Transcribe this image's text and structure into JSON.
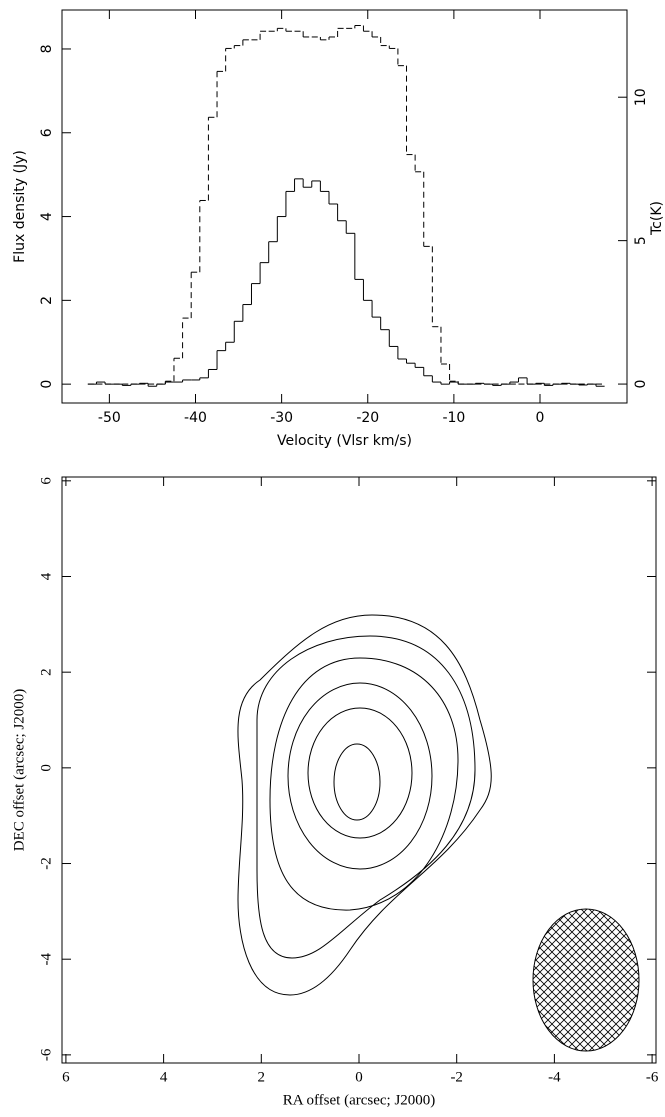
{
  "chart_data": [
    {
      "type": "step",
      "xlabel": "Velocity (Vlsr km/s)",
      "ylabel": "Flux density (Jy)",
      "y2label": "Tc(K)",
      "x": [
        -52,
        -51,
        -50,
        -49,
        -48,
        -47,
        -46,
        -45,
        -44,
        -43,
        -42,
        -41,
        -40,
        -39,
        -38,
        -37,
        -36,
        -35,
        -34,
        -33,
        -32,
        -31,
        -30,
        -29,
        -28,
        -27,
        -26,
        -25,
        -24,
        -23,
        -22,
        -21,
        -20,
        -19,
        -18,
        -17,
        -16,
        -15,
        -14,
        -13,
        -12,
        -11,
        -10,
        -9,
        -8,
        -7,
        -6,
        -5,
        -4,
        -3,
        -2,
        -1,
        0,
        1,
        2,
        3,
        4,
        5,
        6,
        7
      ],
      "series": [
        {
          "color": "#000000",
          "style": "solid",
          "values": [
            0,
            0.05,
            0,
            0,
            -0.03,
            0,
            0.02,
            -0.05,
            0,
            0.05,
            0.05,
            0.1,
            0.1,
            0.15,
            0.35,
            0.8,
            1.0,
            1.5,
            1.9,
            2.4,
            2.9,
            3.4,
            4.0,
            4.6,
            4.9,
            4.7,
            4.85,
            4.6,
            4.3,
            3.9,
            3.6,
            2.5,
            2.0,
            1.6,
            1.3,
            0.9,
            0.6,
            0.5,
            0.4,
            0.2,
            0.05,
            0,
            0.05,
            0,
            0,
            0.02,
            0,
            -0.03,
            0,
            0.05,
            0.15,
            0,
            0.02,
            -0.03,
            0,
            0.02,
            0,
            -0.02,
            0,
            -0.05
          ]
        },
        {
          "color": "#000000",
          "style": "dashed",
          "axis": "y2",
          "values": [
            0,
            0,
            0,
            0,
            0,
            0,
            0,
            0,
            0,
            0.1,
            0.9,
            2.3,
            3.9,
            6.4,
            9.3,
            10.9,
            11.7,
            11.8,
            12.0,
            12.0,
            12.3,
            12.3,
            12.4,
            12.3,
            12.3,
            12.1,
            12.1,
            12.0,
            12.1,
            12.4,
            12.4,
            12.5,
            12.3,
            12.1,
            11.8,
            11.7,
            11.1,
            8.0,
            7.4,
            4.8,
            2.0,
            0.7,
            0.1,
            0,
            0,
            0,
            0,
            0,
            0,
            0,
            0,
            0,
            0,
            0,
            0,
            0,
            0,
            0,
            0,
            0
          ]
        }
      ],
      "xlim": [
        -55.5,
        10.1
      ],
      "xticks": [
        -50,
        -40,
        -30,
        -20,
        -10,
        0
      ],
      "ylim": [
        -0.45,
        8.93
      ],
      "yticks": [
        0,
        2,
        4,
        6,
        8
      ],
      "y2lim": [
        -0.66,
        13.04
      ],
      "y2ticks": [
        0,
        5,
        10
      ]
    },
    {
      "type": "contour",
      "xlabel": "RA offset (arcsec; J2000)",
      "ylabel": "DEC offset (arcsec; J2000)",
      "xlim": [
        6.08,
        -6.08
      ],
      "xticks": [
        6,
        4,
        2,
        0,
        -2,
        -4,
        -6
      ],
      "ylim": [
        -6.17,
        6.08
      ],
      "yticks": [
        -6,
        -4,
        -2,
        0,
        2,
        4,
        6
      ]
    }
  ]
}
